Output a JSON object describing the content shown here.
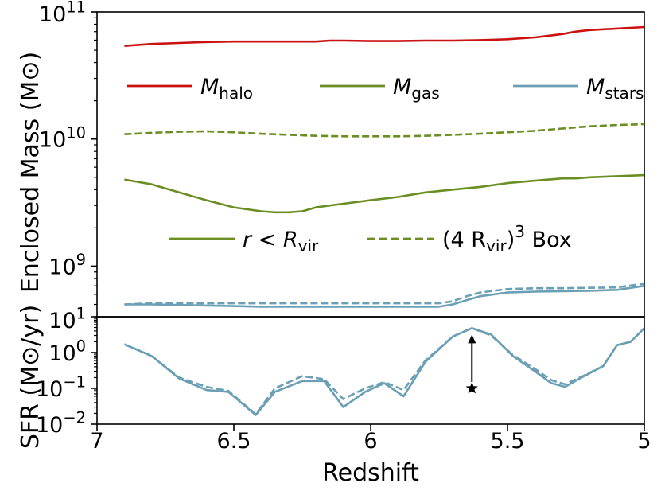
{
  "chart_data": [
    {
      "type": "line",
      "ylabel": "Enclosed Mass (M⊙)",
      "yscale": "log",
      "ylim": [
        400000000,
        100000000000
      ],
      "xlim": [
        7,
        5
      ],
      "x_inverted": true,
      "yticks": [
        {
          "value": 1000000000,
          "base": "10",
          "exp": "9"
        },
        {
          "value": 10000000000,
          "base": "10",
          "exp": "10"
        },
        {
          "value": 100000000000,
          "base": "10",
          "exp": "11"
        }
      ],
      "legend_quantity": [
        {
          "symbol": "M",
          "sub": "halo",
          "color": "#cc1111",
          "dash": "solid"
        },
        {
          "symbol": "M",
          "sub": "gas",
          "color": "#6b8e23",
          "dash": "solid"
        },
        {
          "symbol": "M",
          "sub": "stars",
          "color": "#6a9fb5",
          "dash": "solid"
        }
      ],
      "legend_region": [
        {
          "text_math": "r < R",
          "sub": "vir",
          "suffix": "",
          "dash": "solid",
          "color": "#6b8e23"
        },
        {
          "text_math": "(4 R",
          "sub": "vir",
          "suffix": ")",
          "sup": "3",
          "after": " Box",
          "dash": "dashed",
          "color": "#6b8e23"
        }
      ],
      "series": [
        {
          "key": "halo_box",
          "quantity": "halo",
          "region": "box",
          "color": "#cc1111",
          "dash": "solid",
          "x": [
            6.9,
            6.8,
            6.7,
            6.6,
            6.5,
            6.4,
            6.3,
            6.2,
            6.15,
            6.1,
            6.0,
            5.9,
            5.8,
            5.7,
            5.6,
            5.5,
            5.4,
            5.35,
            5.3,
            5.25,
            5.2,
            5.1,
            5.0
          ],
          "y": [
            54000000000.0,
            56000000000.0,
            57000000000.0,
            58000000000.0,
            58500000000.0,
            58500000000.0,
            58500000000.0,
            58500000000.0,
            59500000000.0,
            59500000000.0,
            59000000000.0,
            59000000000.0,
            59500000000.0,
            59500000000.0,
            60000000000.0,
            61000000000.0,
            63000000000.0,
            65000000000.0,
            67000000000.0,
            70000000000.0,
            72000000000.0,
            74000000000.0,
            76000000000.0
          ]
        },
        {
          "key": "gas_box",
          "quantity": "gas",
          "region": "box",
          "color": "#6b8e23",
          "dash": "dashed",
          "x": [
            6.9,
            6.8,
            6.7,
            6.6,
            6.5,
            6.4,
            6.3,
            6.2,
            6.1,
            6.0,
            5.9,
            5.8,
            5.7,
            5.6,
            5.5,
            5.4,
            5.3,
            5.2,
            5.1,
            5.0
          ],
          "y": [
            10900000000.0,
            11200000000.0,
            11400000000.0,
            11500000000.0,
            11300000000.0,
            11000000000.0,
            10800000000.0,
            10600000000.0,
            10500000000.0,
            10500000000.0,
            10500000000.0,
            10600000000.0,
            10800000000.0,
            11000000000.0,
            11300000000.0,
            11600000000.0,
            12100000000.0,
            12600000000.0,
            12900000000.0,
            13100000000.0
          ]
        },
        {
          "key": "gas_vir",
          "quantity": "gas",
          "region": "vir",
          "color": "#6b8e23",
          "dash": "solid",
          "x": [
            6.9,
            6.8,
            6.7,
            6.6,
            6.5,
            6.4,
            6.35,
            6.3,
            6.25,
            6.2,
            6.1,
            6.0,
            5.9,
            5.8,
            5.7,
            5.6,
            5.5,
            5.4,
            5.3,
            5.25,
            5.2,
            5.1,
            5.0
          ],
          "y": [
            4800000000.0,
            4400000000.0,
            3800000000.0,
            3300000000.0,
            2900000000.0,
            2700000000.0,
            2650000000.0,
            2650000000.0,
            2700000000.0,
            2900000000.0,
            3100000000.0,
            3300000000.0,
            3500000000.0,
            3800000000.0,
            4000000000.0,
            4200000000.0,
            4500000000.0,
            4700000000.0,
            4900000000.0,
            4900000000.0,
            5000000000.0,
            5100000000.0,
            5200000000.0
          ]
        },
        {
          "key": "stars_box",
          "quantity": "stars",
          "region": "box",
          "color": "#6a9fb5",
          "dash": "dashed",
          "x": [
            6.9,
            6.8,
            6.7,
            6.6,
            6.5,
            6.4,
            6.3,
            6.2,
            6.1,
            6.0,
            5.9,
            5.8,
            5.75,
            5.7,
            5.65,
            5.6,
            5.55,
            5.5,
            5.4,
            5.3,
            5.2,
            5.1,
            5.0
          ],
          "y": [
            500000000.0,
            510000000.0,
            510000000.0,
            510000000.0,
            510000000.0,
            510000000.0,
            510000000.0,
            510000000.0,
            510000000.0,
            510000000.0,
            510000000.0,
            510000000.0,
            510000000.0,
            530000000.0,
            580000000.0,
            620000000.0,
            640000000.0,
            660000000.0,
            670000000.0,
            670000000.0,
            675000000.0,
            680000000.0,
            730000000.0
          ]
        },
        {
          "key": "stars_vir",
          "quantity": "stars",
          "region": "vir",
          "color": "#6a9fb5",
          "dash": "solid",
          "x": [
            6.9,
            6.8,
            6.7,
            6.6,
            6.5,
            6.4,
            6.3,
            6.2,
            6.1,
            6.0,
            5.9,
            5.8,
            5.75,
            5.7,
            5.65,
            5.6,
            5.55,
            5.5,
            5.4,
            5.3,
            5.2,
            5.1,
            5.0
          ],
          "y": [
            500000000.0,
            500000000.0,
            495000000.0,
            490000000.0,
            485000000.0,
            480000000.0,
            480000000.0,
            480000000.0,
            480000000.0,
            480000000.0,
            480000000.0,
            480000000.0,
            480000000.0,
            500000000.0,
            540000000.0,
            580000000.0,
            600000000.0,
            620000000.0,
            630000000.0,
            635000000.0,
            640000000.0,
            650000000.0,
            700000000.0
          ]
        }
      ]
    },
    {
      "type": "line",
      "ylabel": "SFR (M⊙/yr)",
      "xlabel": "Redshift",
      "yscale": "log",
      "ylim": [
        0.01,
        10
      ],
      "xlim": [
        7,
        5
      ],
      "x_inverted": true,
      "xticks": [
        "7",
        "6.5",
        "6",
        "5.5",
        "5"
      ],
      "yticks": [
        {
          "value": 0.01,
          "base": "10",
          "exp": "−2"
        },
        {
          "value": 0.1,
          "base": "10",
          "exp": "−1"
        },
        {
          "value": 1,
          "base": "10",
          "exp": "0"
        },
        {
          "value": 10,
          "base": "10",
          "exp": "1"
        }
      ],
      "annotation": {
        "marker": "star",
        "x": 5.63,
        "y_from": 0.1,
        "y_to": 4.8,
        "arrow": true
      },
      "series": [
        {
          "key": "sfr_vir",
          "region": "vir",
          "color": "#6a9fb5",
          "dash": "solid",
          "x": [
            6.9,
            6.8,
            6.7,
            6.6,
            6.52,
            6.42,
            6.35,
            6.25,
            6.17,
            6.1,
            6.02,
            5.95,
            5.88,
            5.8,
            5.7,
            5.63,
            5.56,
            5.48,
            5.4,
            5.34,
            5.29,
            5.23,
            5.15,
            5.1,
            5.05,
            5.0
          ],
          "y": [
            1.7,
            0.8,
            0.19,
            0.09,
            0.08,
            0.018,
            0.08,
            0.16,
            0.16,
            0.03,
            0.08,
            0.14,
            0.06,
            0.55,
            2.8,
            4.8,
            3.2,
            0.8,
            0.3,
            0.14,
            0.11,
            0.2,
            0.42,
            1.6,
            2.0,
            4.8
          ]
        },
        {
          "key": "sfr_box",
          "region": "box",
          "color": "#6a9fb5",
          "dash": "dashed",
          "x": [
            6.9,
            6.8,
            6.7,
            6.6,
            6.52,
            6.42,
            6.35,
            6.25,
            6.17,
            6.1,
            6.02,
            5.95,
            5.88,
            5.8,
            5.7,
            5.63,
            5.56,
            5.48,
            5.4,
            5.34,
            5.29,
            5.23,
            5.15,
            5.1,
            5.05,
            5.0
          ],
          "y": [
            1.7,
            0.8,
            0.2,
            0.11,
            0.085,
            0.019,
            0.1,
            0.22,
            0.18,
            0.05,
            0.1,
            0.15,
            0.09,
            0.6,
            2.8,
            4.8,
            3.0,
            0.85,
            0.35,
            0.17,
            0.13,
            0.21,
            0.42,
            1.6,
            2.0,
            4.8
          ]
        }
      ]
    }
  ]
}
